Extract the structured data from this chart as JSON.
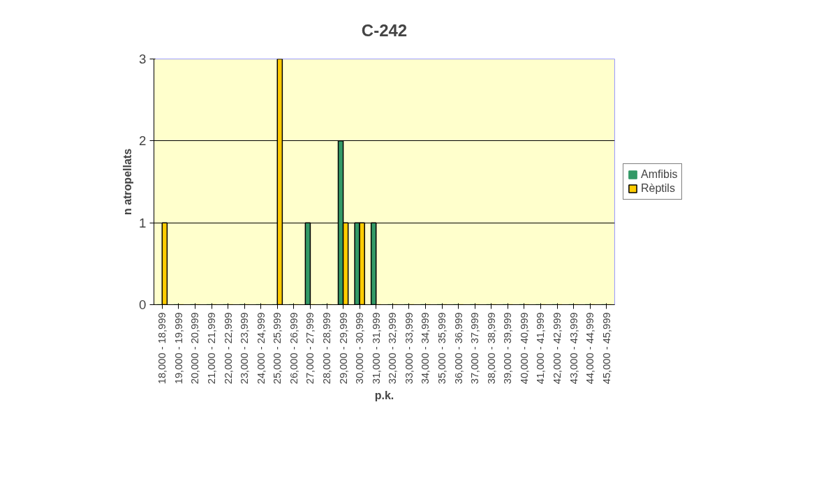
{
  "chart_data": {
    "type": "bar",
    "title": "C-242",
    "xlabel": "p.k.",
    "ylabel": "n atropellats",
    "categories": [
      "18,000 - 18,999",
      "19,000 - 19,999",
      "20,000 - 20,999",
      "21,000 - 21,999",
      "22,000 - 22,999",
      "23,000 - 23,999",
      "24,000 - 24,999",
      "25,000 - 25,999",
      "26,000 - 26,999",
      "27,000 - 27,999",
      "28,000 - 28,999",
      "29,000 - 29,999",
      "30,000 - 30,999",
      "31,000 - 31,999",
      "32,000 - 32,999",
      "33,000 - 33,999",
      "34,000 - 34,999",
      "35,000 - 35,999",
      "36,000 - 36,999",
      "37,000 - 37,999",
      "38,000 - 38,999",
      "39,000 - 39,999",
      "40,000 - 40,999",
      "41,000 - 41,999",
      "42,000 - 42,999",
      "43,000 - 43,999",
      "44,000 - 44,999",
      "45,000 - 45,999"
    ],
    "series": [
      {
        "name": "Amfibis",
        "color": "#339966",
        "values": [
          0,
          0,
          0,
          0,
          0,
          0,
          0,
          0,
          0,
          1,
          0,
          2,
          1,
          1,
          0,
          0,
          0,
          0,
          0,
          0,
          0,
          0,
          0,
          0,
          0,
          0,
          0,
          0
        ]
      },
      {
        "name": "Rèptils",
        "color": "#ffcc00",
        "values": [
          1,
          0,
          0,
          0,
          0,
          0,
          0,
          3,
          0,
          0,
          0,
          1,
          1,
          0,
          0,
          0,
          0,
          0,
          0,
          0,
          0,
          0,
          0,
          0,
          0,
          0,
          0,
          0
        ]
      }
    ],
    "ylim": [
      0,
      3
    ],
    "yticks": [
      0,
      1,
      2,
      3
    ],
    "grid": "y",
    "legend": "right"
  }
}
